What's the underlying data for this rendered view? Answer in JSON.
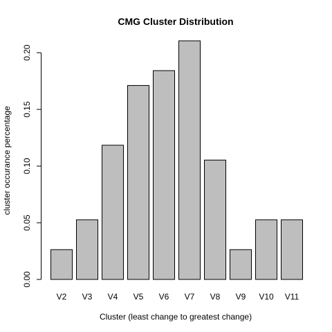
{
  "chart_data": {
    "type": "bar",
    "title": "CMG Cluster Distribution",
    "xlabel": "Cluster (least change to greatest change)",
    "ylabel": "cluster occurance percentage",
    "categories": [
      "V2",
      "V3",
      "V4",
      "V5",
      "V6",
      "V7",
      "V8",
      "V9",
      "V10",
      "V11"
    ],
    "values": [
      0.0263,
      0.0526,
      0.1184,
      0.1711,
      0.1842,
      0.2105,
      0.1053,
      0.0263,
      0.0526,
      0.0526
    ],
    "ylim": [
      0,
      0.2105
    ],
    "yticks": [
      0.0,
      0.05,
      0.1,
      0.15,
      0.2
    ],
    "ytick_labels": [
      "0.00",
      "0.05",
      "0.10",
      "0.15",
      "0.20"
    ],
    "bar_color": "#bebebe",
    "grid": false,
    "legend": "none"
  }
}
